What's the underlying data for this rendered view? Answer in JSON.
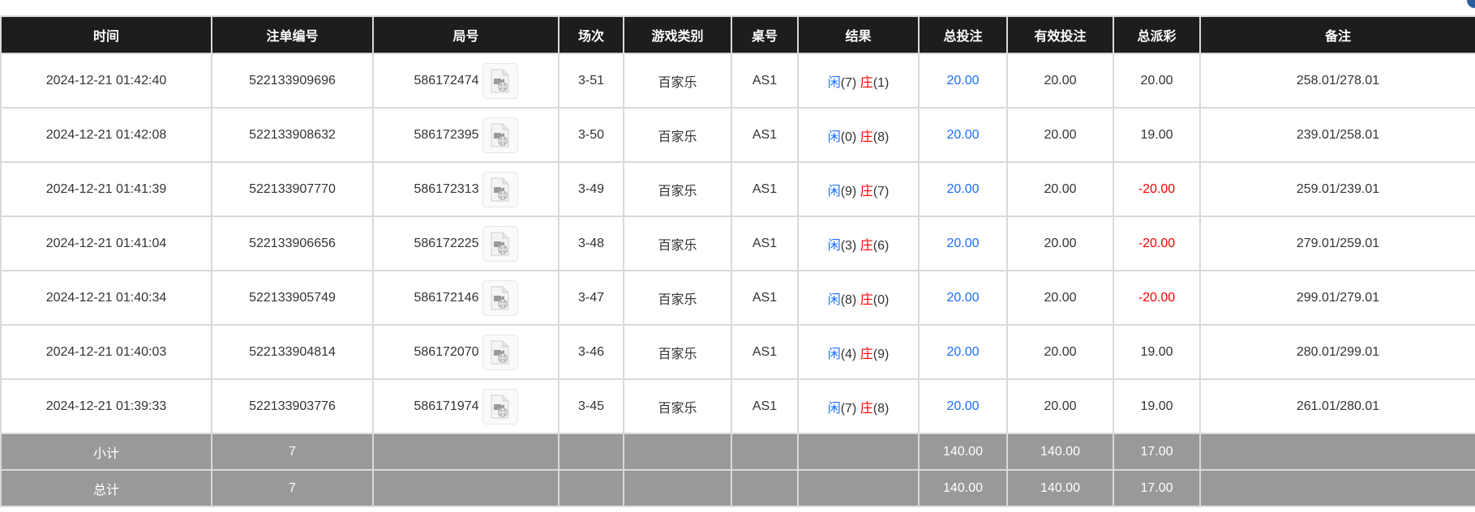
{
  "columns": [
    "时间",
    "注单编号",
    "局号",
    "场次",
    "游戏类别",
    "桌号",
    "结果",
    "总投注",
    "有效投注",
    "总派彩",
    "备注"
  ],
  "rows": [
    {
      "time": "2024-12-21 01:42:40",
      "bet_id": "522133909696",
      "round": "586172474",
      "session": "3-51",
      "game": "百家乐",
      "table": "AS1",
      "player": "闲",
      "player_pts": "(7)",
      "banker": "庄",
      "banker_pts": "(1)",
      "total_bet": "20.00",
      "valid_bet": "20.00",
      "payout": "20.00",
      "payout_negative": false,
      "note": "258.01/278.01"
    },
    {
      "time": "2024-12-21 01:42:08",
      "bet_id": "522133908632",
      "round": "586172395",
      "session": "3-50",
      "game": "百家乐",
      "table": "AS1",
      "player": "闲",
      "player_pts": "(0)",
      "banker": "庄",
      "banker_pts": "(8)",
      "total_bet": "20.00",
      "valid_bet": "20.00",
      "payout": "19.00",
      "payout_negative": false,
      "note": "239.01/258.01"
    },
    {
      "time": "2024-12-21 01:41:39",
      "bet_id": "522133907770",
      "round": "586172313",
      "session": "3-49",
      "game": "百家乐",
      "table": "AS1",
      "player": "闲",
      "player_pts": "(9)",
      "banker": "庄",
      "banker_pts": "(7)",
      "total_bet": "20.00",
      "valid_bet": "20.00",
      "payout": "-20.00",
      "payout_negative": true,
      "note": "259.01/239.01"
    },
    {
      "time": "2024-12-21 01:41:04",
      "bet_id": "522133906656",
      "round": "586172225",
      "session": "3-48",
      "game": "百家乐",
      "table": "AS1",
      "player": "闲",
      "player_pts": "(3)",
      "banker": "庄",
      "banker_pts": "(6)",
      "total_bet": "20.00",
      "valid_bet": "20.00",
      "payout": "-20.00",
      "payout_negative": true,
      "note": "279.01/259.01"
    },
    {
      "time": "2024-12-21 01:40:34",
      "bet_id": "522133905749",
      "round": "586172146",
      "session": "3-47",
      "game": "百家乐",
      "table": "AS1",
      "player": "闲",
      "player_pts": "(8)",
      "banker": "庄",
      "banker_pts": "(0)",
      "total_bet": "20.00",
      "valid_bet": "20.00",
      "payout": "-20.00",
      "payout_negative": true,
      "note": "299.01/279.01"
    },
    {
      "time": "2024-12-21 01:40:03",
      "bet_id": "522133904814",
      "round": "586172070",
      "session": "3-46",
      "game": "百家乐",
      "table": "AS1",
      "player": "闲",
      "player_pts": "(4)",
      "banker": "庄",
      "banker_pts": "(9)",
      "total_bet": "20.00",
      "valid_bet": "20.00",
      "payout": "19.00",
      "payout_negative": false,
      "note": "280.01/299.01"
    },
    {
      "time": "2024-12-21 01:39:33",
      "bet_id": "522133903776",
      "round": "586171974",
      "session": "3-45",
      "game": "百家乐",
      "table": "AS1",
      "player": "闲",
      "player_pts": "(7)",
      "banker": "庄",
      "banker_pts": "(8)",
      "total_bet": "20.00",
      "valid_bet": "20.00",
      "payout": "19.00",
      "payout_negative": false,
      "note": "261.01/280.01"
    }
  ],
  "summary": [
    {
      "label": "小计",
      "count": "7",
      "total_bet": "140.00",
      "valid_bet": "140.00",
      "payout": "17.00"
    },
    {
      "label": "总计",
      "count": "7",
      "total_bet": "140.00",
      "valid_bet": "140.00",
      "payout": "17.00"
    }
  ],
  "colors": {
    "header_bg": "#1d1d1d",
    "summary_bg": "#999999",
    "player": "#1a6eff",
    "banker": "#ff0000",
    "negative": "#ff0000"
  },
  "icons": {
    "replay": "video-file-icon"
  }
}
